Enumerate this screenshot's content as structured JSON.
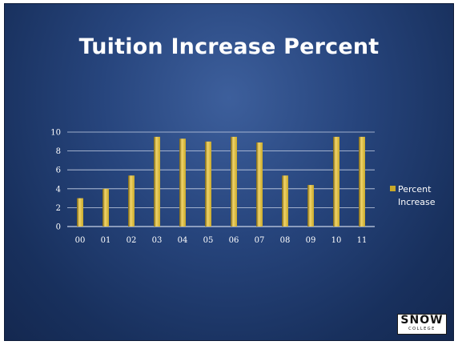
{
  "slide": {
    "title": "Tuition Increase Percent",
    "logo_text": "SNOW",
    "logo_subtext": "COLLEGE"
  },
  "colors": {
    "bar": "#c9a92a",
    "bar_highlight": "#f0d46a",
    "bar_shadow": "#7a6212",
    "gridline": "#c8d2e6",
    "text": "#ffffff"
  },
  "chart_data": {
    "type": "bar",
    "categories": [
      "00",
      "01",
      "02",
      "03",
      "04",
      "05",
      "06",
      "07",
      "08",
      "09",
      "10",
      "11"
    ],
    "series": [
      {
        "name": "Percent Increase",
        "values": [
          3,
          4,
          5.4,
          9.5,
          9.3,
          9,
          9.5,
          8.9,
          5.4,
          4.4,
          9.5,
          9.5
        ]
      }
    ],
    "y_ticks": [
      "0",
      "2",
      "4",
      "6",
      "8",
      "10"
    ],
    "ylim": [
      0,
      10
    ],
    "grid": true,
    "legend_position": "right",
    "legend_label_lines": [
      "Percent",
      "Increase"
    ]
  }
}
